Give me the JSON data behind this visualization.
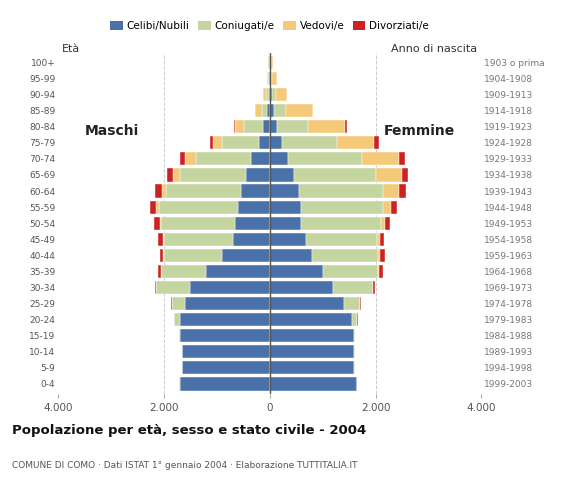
{
  "age_groups": [
    "0-4",
    "5-9",
    "10-14",
    "15-19",
    "20-24",
    "25-29",
    "30-34",
    "35-39",
    "40-44",
    "45-49",
    "50-54",
    "55-59",
    "60-64",
    "65-69",
    "70-74",
    "75-79",
    "80-84",
    "85-89",
    "90-94",
    "95-99",
    "100+"
  ],
  "birth_years": [
    "1999-2003",
    "1994-1998",
    "1989-1993",
    "1984-1988",
    "1979-1983",
    "1974-1978",
    "1969-1973",
    "1964-1968",
    "1959-1963",
    "1954-1958",
    "1949-1953",
    "1944-1948",
    "1939-1943",
    "1934-1938",
    "1929-1933",
    "1924-1928",
    "1919-1923",
    "1914-1918",
    "1909-1913",
    "1904-1908",
    "1903 o prima"
  ],
  "colors": {
    "celibi": "#4a72a8",
    "coniugati": "#c5d5a0",
    "vedovi": "#f5c97a",
    "divorziati": "#cc2222"
  },
  "males": {
    "celibi": [
      1700,
      1650,
      1650,
      1700,
      1700,
      1600,
      1500,
      1200,
      900,
      700,
      650,
      600,
      550,
      450,
      350,
      200,
      130,
      50,
      20,
      10,
      5
    ],
    "coniugati": [
      5,
      5,
      10,
      20,
      100,
      250,
      650,
      850,
      1100,
      1300,
      1400,
      1500,
      1400,
      1250,
      1050,
      700,
      350,
      100,
      50,
      20,
      10
    ],
    "vedovi": [
      0,
      0,
      0,
      0,
      5,
      5,
      5,
      10,
      15,
      20,
      30,
      50,
      80,
      120,
      200,
      180,
      180,
      120,
      60,
      30,
      15
    ],
    "divorziati": [
      0,
      0,
      0,
      0,
      5,
      10,
      20,
      50,
      60,
      90,
      100,
      120,
      130,
      120,
      100,
      50,
      20,
      5,
      5,
      0,
      0
    ]
  },
  "females": {
    "celibi": [
      1650,
      1600,
      1600,
      1600,
      1550,
      1400,
      1200,
      1000,
      800,
      680,
      600,
      600,
      550,
      450,
      350,
      230,
      130,
      80,
      40,
      20,
      10
    ],
    "coniugati": [
      5,
      5,
      10,
      20,
      100,
      300,
      750,
      1050,
      1250,
      1350,
      1500,
      1550,
      1600,
      1550,
      1400,
      1050,
      600,
      230,
      80,
      20,
      10
    ],
    "vedovi": [
      0,
      0,
      0,
      0,
      5,
      5,
      10,
      20,
      30,
      50,
      80,
      150,
      300,
      500,
      700,
      700,
      700,
      500,
      200,
      100,
      50
    ],
    "divorziati": [
      0,
      0,
      0,
      0,
      5,
      20,
      30,
      80,
      100,
      80,
      90,
      110,
      120,
      110,
      100,
      80,
      30,
      10,
      5,
      0,
      0
    ]
  },
  "title": "Popolazione per età, sesso e stato civile - 2004",
  "subtitle": "COMUNE DI COMO · Dati ISTAT 1° gennaio 2004 · Elaborazione TUTTITALIA.IT",
  "xlim": 4000,
  "xticks": [
    -4000,
    -2000,
    0,
    2000,
    4000
  ],
  "xticklabels": [
    "4.000",
    "2.000",
    "0",
    "2.000",
    "4.000"
  ],
  "bar_height": 0.82,
  "background": "#f5f5f5"
}
